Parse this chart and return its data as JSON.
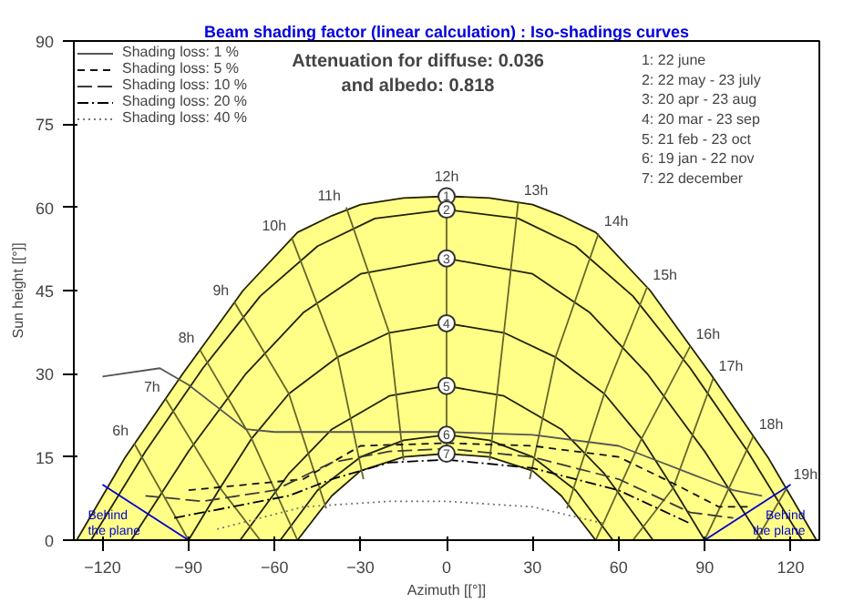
{
  "chart_data": {
    "type": "line",
    "title": "Beam shading factor (linear calculation) : Iso-shadings curves",
    "xlabel": "Azimuth [[°]]",
    "ylabel": "Sun height [[°]]",
    "xlim": [
      -130,
      130
    ],
    "ylim": [
      0,
      90
    ],
    "xticks": [
      -120,
      -90,
      -60,
      -30,
      0,
      30,
      60,
      90,
      120
    ],
    "yticks": [
      0,
      15,
      30,
      45,
      60,
      75,
      90
    ],
    "grid": false,
    "legend": "top left",
    "series": [
      {
        "type": "area",
        "color": "#ffff88",
        "x": [
          -129,
          -112,
          -92,
          -71,
          -52,
          -40,
          -30,
          -15,
          0,
          15,
          30,
          40,
          52,
          71,
          92,
          112,
          129
        ],
        "values": [
          0,
          15,
          30,
          45,
          55.5,
          58.5,
          60.5,
          61.7,
          62,
          61.7,
          60.5,
          58.5,
          55.5,
          45,
          30,
          15,
          0
        ]
      },
      {
        "type": "area",
        "color": "#ffffff",
        "x": [
          -52,
          -40,
          -30,
          -15,
          0,
          15,
          30,
          40,
          52
        ],
        "values": [
          0,
          8,
          12.5,
          15,
          15.6,
          15,
          12.5,
          8,
          0
        ]
      },
      {
        "color": "#222200",
        "x": [
          -124,
          -105,
          -85,
          -65,
          -45,
          -25,
          0,
          25,
          45,
          65,
          85,
          105,
          124,
          null,
          -110,
          -90,
          -70,
          -50,
          -30,
          0,
          30,
          50,
          70,
          90,
          110,
          null,
          -90,
          -79,
          -68,
          -55,
          -38,
          -20,
          0,
          20,
          38,
          55,
          68,
          79,
          90,
          null,
          -72,
          -55,
          -40,
          -20,
          0,
          20,
          40,
          55,
          72,
          null,
          -58,
          -45,
          -30,
          -15,
          0,
          15,
          30,
          45,
          58
        ],
        "values": [
          0,
          16,
          31,
          44,
          53,
          58,
          59.6,
          58,
          53,
          44,
          31,
          16,
          0,
          null,
          0,
          16,
          30,
          41,
          48,
          50.8,
          48,
          41,
          30,
          16,
          0,
          null,
          0,
          9.4,
          18.3,
          26.4,
          33,
          37.4,
          39.1,
          37.4,
          33,
          26.4,
          18.3,
          9.4,
          0,
          null,
          0,
          12,
          20,
          26,
          27.8,
          26,
          20,
          12,
          0,
          null,
          0,
          9,
          15,
          18,
          19,
          18,
          15,
          9,
          0
        ]
      },
      {
        "color": "#66662a",
        "x": [
          -109,
          -90,
          null,
          -98,
          -79,
          -65,
          null,
          -86,
          -68,
          -52,
          null,
          -74,
          -55,
          -42,
          null,
          -54,
          -38,
          -29,
          null,
          -35,
          -20,
          -15,
          null,
          0,
          0,
          null,
          25,
          20,
          15,
          null,
          53,
          38,
          29,
          null,
          70,
          55,
          42,
          null,
          85,
          68,
          52,
          null,
          93,
          79,
          65,
          null,
          107,
          90,
          null,
          119,
          108
        ],
        "values": [
          17.5,
          0,
          null,
          25.5,
          9.4,
          0,
          null,
          34.3,
          18.3,
          0,
          null,
          42.9,
          26.4,
          5.7,
          null,
          54.5,
          33,
          11,
          null,
          60,
          37.4,
          14.4,
          null,
          62,
          15.6,
          null,
          61,
          37.4,
          14.4,
          null,
          55.3,
          33,
          11,
          null,
          45.7,
          26.4,
          5.7,
          null,
          35,
          18.3,
          0,
          null,
          29.2,
          9.4,
          0,
          null,
          18.8,
          0,
          null,
          9.7,
          0
        ]
      },
      {
        "name": "Shading loss: 1 %",
        "color": "#555555",
        "line_style": "solid",
        "x": [
          -120,
          -100,
          -90,
          -80,
          -70,
          -60,
          -30,
          0,
          30,
          60,
          75,
          90,
          100,
          110
        ],
        "values": [
          29.5,
          31,
          28,
          24,
          20,
          19.5,
          19.5,
          19.5,
          19,
          17,
          14,
          11,
          9,
          8
        ]
      },
      {
        "name": "Shading loss: 5 %",
        "color": "#111111",
        "line_style": "dashed",
        "x": [
          -90,
          -70,
          -50,
          -30,
          0,
          30,
          60,
          80,
          95,
          105
        ],
        "values": [
          9,
          10,
          11,
          17,
          17.5,
          17,
          15,
          10,
          6,
          6
        ]
      },
      {
        "name": "Shading loss: 10 %",
        "color": "#3a3a3a",
        "line_style": "longdash",
        "x": [
          -105,
          -85,
          -60,
          -40,
          -20,
          0,
          30,
          60,
          85,
          100
        ],
        "values": [
          8,
          7,
          9,
          14,
          16,
          16.5,
          15,
          11,
          5,
          4
        ]
      },
      {
        "name": "Shading loss: 20 %",
        "color": "#000000",
        "line_style": "dashdot",
        "x": [
          -95,
          -75,
          -55,
          -40,
          -20,
          0,
          30,
          60,
          85
        ],
        "values": [
          4,
          6,
          8,
          11,
          14,
          14.5,
          13,
          9,
          3
        ]
      },
      {
        "name": "Shading loss: 40 %",
        "color": "#777777",
        "line_style": "dotted",
        "x": [
          -80,
          -50,
          -20,
          0,
          30,
          55
        ],
        "values": [
          2,
          6,
          7,
          7,
          6,
          3
        ]
      },
      {
        "name": "Behind\nthe plane",
        "color": "#0000cc",
        "x": [
          -120,
          -90
        ],
        "values": [
          10,
          0
        ]
      },
      {
        "name": "Behind\nthe plane",
        "color": "#0000cc",
        "x": [
          120,
          90
        ],
        "values": [
          10,
          0
        ]
      }
    ],
    "annotations": [
      "Attenuation for diffuse: 0.036\nand albedo: 0.818",
      "1: 22 june\n2: 22 may - 23 july\n3: 20 apr - 23 aug\n4: 20 mar - 23 sep\n5: 21 feb - 23 oct\n6: 19 jan - 22 nov\n7: 22 december",
      {
        "text": "1",
        "x": 0,
        "y": 62
      },
      {
        "text": "2",
        "x": 0,
        "y": 59.6
      },
      {
        "text": "3",
        "x": 0,
        "y": 50.8
      },
      {
        "text": "4",
        "x": 0,
        "y": 39.1
      },
      {
        "text": "5",
        "x": 0,
        "y": 27.8
      },
      {
        "text": "6",
        "x": 0,
        "y": 19
      },
      {
        "text": "7",
        "x": 0,
        "y": 15.6
      },
      {
        "text": "6h",
        "x": -109,
        "y": 17.5
      },
      {
        "text": "7h",
        "x": -98,
        "y": 25.5
      },
      {
        "text": "8h",
        "x": -86,
        "y": 34.3
      },
      {
        "text": "9h",
        "x": -74,
        "y": 42.9
      },
      {
        "text": "10h",
        "x": -54,
        "y": 54.5
      },
      {
        "text": "11h",
        "x": -35,
        "y": 60
      },
      {
        "text": "12h",
        "x": 0,
        "y": 62
      },
      {
        "text": "13h",
        "x": 25,
        "y": 61
      },
      {
        "text": "14h",
        "x": 53,
        "y": 55.3
      },
      {
        "text": "15h",
        "x": 70,
        "y": 45.7
      },
      {
        "text": "16h",
        "x": 85,
        "y": 35
      },
      {
        "text": "17h",
        "x": 93,
        "y": 29.2
      },
      {
        "text": "18h",
        "x": 107,
        "y": 18.8
      },
      {
        "text": "19h",
        "x": 119,
        "y": 9.7
      }
    ]
  }
}
